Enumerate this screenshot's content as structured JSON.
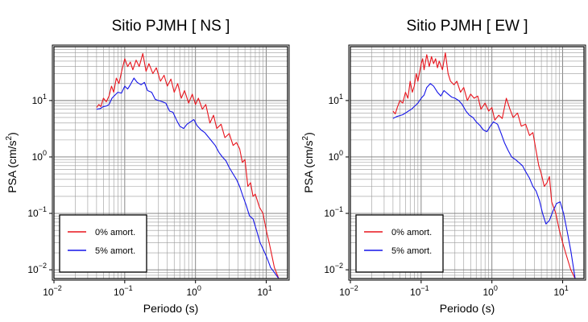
{
  "chart_data": [
    {
      "type": "line",
      "title": "Sitio PJMH [ NS ]",
      "xlabel": "Periodo (s)",
      "ylabel": "PSA (cm/s",
      "ylabel_sup": "2",
      "ylabel_close": ")",
      "x_scale": "log",
      "y_scale": "log",
      "xlim": [
        0.01,
        20
      ],
      "ylim": [
        0.007,
        90
      ],
      "grid": true,
      "legend_position": "bottom-left",
      "x_ticks": [
        {
          "value": 0.01,
          "base": "10",
          "exp": "−2"
        },
        {
          "value": 0.1,
          "base": "10",
          "exp": "−1"
        },
        {
          "value": 1,
          "base": "10",
          "exp": "0"
        },
        {
          "value": 10,
          "base": "10",
          "exp": "1"
        }
      ],
      "y_ticks": [
        {
          "value": 0.01,
          "base": "10",
          "exp": "−2"
        },
        {
          "value": 0.1,
          "base": "10",
          "exp": "−1"
        },
        {
          "value": 1,
          "base": "10",
          "exp": "0"
        },
        {
          "value": 10,
          "base": "10",
          "exp": "1"
        }
      ],
      "series": [
        {
          "name": "0% amort.",
          "color": "#e8141c",
          "x": [
            0.04,
            0.043,
            0.046,
            0.05,
            0.055,
            0.06,
            0.065,
            0.07,
            0.076,
            0.083,
            0.09,
            0.1,
            0.11,
            0.12,
            0.13,
            0.145,
            0.16,
            0.18,
            0.2,
            0.22,
            0.25,
            0.28,
            0.32,
            0.36,
            0.4,
            0.45,
            0.5,
            0.56,
            0.63,
            0.7,
            0.8,
            0.9,
            1.0,
            1.1,
            1.25,
            1.4,
            1.6,
            1.8,
            2.0,
            2.3,
            2.6,
            3.0,
            3.4,
            3.8,
            4.2,
            4.6,
            5.0,
            5.5,
            6.0,
            6.5,
            7.0,
            8.0,
            9.0,
            10.0,
            11.0,
            12.0,
            13.0,
            15.0
          ],
          "y": [
            7.5,
            8.5,
            7.8,
            11,
            9.5,
            12,
            18,
            14,
            25,
            20,
            32,
            55,
            40,
            48,
            35,
            52,
            40,
            68,
            33,
            45,
            30,
            38,
            22,
            28,
            18,
            24,
            14,
            20,
            11,
            15,
            9,
            13,
            8.5,
            11,
            7,
            8.5,
            4,
            5.5,
            3.2,
            3.8,
            2.2,
            2.6,
            1.6,
            1.8,
            1.4,
            0.8,
            0.9,
            0.3,
            0.35,
            0.2,
            0.22,
            0.13,
            0.1,
            0.05,
            0.03,
            0.018,
            0.011,
            0.007
          ]
        },
        {
          "name": "5% amort.",
          "color": "#1414e8",
          "x": [
            0.04,
            0.045,
            0.05,
            0.055,
            0.06,
            0.066,
            0.073,
            0.08,
            0.09,
            0.1,
            0.11,
            0.12,
            0.135,
            0.15,
            0.17,
            0.19,
            0.21,
            0.24,
            0.27,
            0.3,
            0.34,
            0.38,
            0.43,
            0.48,
            0.54,
            0.6,
            0.68,
            0.76,
            0.85,
            0.95,
            1.05,
            1.2,
            1.35,
            1.5,
            1.7,
            1.9,
            2.15,
            2.4,
            2.7,
            3.0,
            3.4,
            3.8,
            4.2,
            4.7,
            5.2,
            5.8,
            6.5,
            7.3,
            8.2,
            9.2,
            10.3,
            11.5,
            13.0,
            15.0
          ],
          "y": [
            7,
            7.2,
            7.8,
            8.0,
            8.5,
            11,
            12.5,
            14,
            13.5,
            18,
            16,
            19,
            25,
            21,
            19,
            21,
            15,
            14,
            10.5,
            10,
            9.5,
            9,
            6.5,
            6.2,
            4.5,
            3.5,
            3.2,
            3.8,
            4.2,
            4.6,
            3.6,
            3.0,
            2.7,
            2.3,
            1.9,
            1.6,
            1.2,
            1.0,
            0.85,
            0.65,
            0.5,
            0.4,
            0.3,
            0.2,
            0.14,
            0.09,
            0.08,
            0.05,
            0.03,
            0.022,
            0.016,
            0.011,
            0.009,
            0.007
          ]
        }
      ]
    },
    {
      "type": "line",
      "title": "Sitio PJMH [ EW ]",
      "xlabel": "Periodo (s)",
      "ylabel": "PSA (cm/s",
      "ylabel_sup": "2",
      "ylabel_close": ")",
      "x_scale": "log",
      "y_scale": "log",
      "xlim": [
        0.01,
        20
      ],
      "ylim": [
        0.007,
        90
      ],
      "grid": true,
      "legend_position": "bottom-left",
      "x_ticks": [
        {
          "value": 0.01,
          "base": "10",
          "exp": "−2"
        },
        {
          "value": 0.1,
          "base": "10",
          "exp": "−1"
        },
        {
          "value": 1,
          "base": "10",
          "exp": "0"
        },
        {
          "value": 10,
          "base": "10",
          "exp": "1"
        }
      ],
      "y_ticks": [
        {
          "value": 0.01,
          "base": "10",
          "exp": "−2"
        },
        {
          "value": 0.1,
          "base": "10",
          "exp": "−1"
        },
        {
          "value": 1,
          "base": "10",
          "exp": "0"
        },
        {
          "value": 10,
          "base": "10",
          "exp": "1"
        }
      ],
      "series": [
        {
          "name": "0% amort.",
          "color": "#e8141c",
          "x": [
            0.04,
            0.043,
            0.046,
            0.05,
            0.055,
            0.06,
            0.065,
            0.07,
            0.075,
            0.08,
            0.085,
            0.09,
            0.1,
            0.105,
            0.11,
            0.12,
            0.13,
            0.14,
            0.15,
            0.16,
            0.17,
            0.18,
            0.2,
            0.22,
            0.24,
            0.26,
            0.29,
            0.32,
            0.36,
            0.4,
            0.45,
            0.5,
            0.56,
            0.63,
            0.7,
            0.8,
            0.9,
            1.0,
            1.1,
            1.25,
            1.4,
            1.6,
            1.8,
            2.0,
            2.3,
            2.6,
            3.0,
            3.4,
            3.8,
            4.2,
            4.6,
            5.0,
            5.5,
            6.0,
            6.5,
            7.0,
            8.0,
            9.0,
            10.0,
            11.0,
            12.0,
            13.0,
            15.0
          ],
          "y": [
            6.5,
            5.8,
            7.5,
            10,
            9,
            14,
            11,
            22,
            14,
            18,
            30,
            22,
            45,
            55,
            35,
            65,
            40,
            60,
            45,
            55,
            38,
            50,
            35,
            70,
            30,
            22,
            19,
            22,
            14,
            17,
            10,
            13,
            11,
            12,
            7,
            9,
            6.5,
            7.5,
            4.5,
            5.5,
            4.8,
            11,
            7,
            5,
            6,
            3.5,
            3.8,
            2.4,
            2.7,
            1.3,
            0.7,
            0.5,
            0.3,
            0.35,
            0.45,
            0.16,
            0.1,
            0.05,
            0.03,
            0.02,
            0.014,
            0.01,
            0.007
          ]
        },
        {
          "name": "5% amort.",
          "color": "#1414e8",
          "x": [
            0.04,
            0.045,
            0.05,
            0.055,
            0.06,
            0.066,
            0.073,
            0.08,
            0.09,
            0.1,
            0.11,
            0.12,
            0.135,
            0.15,
            0.17,
            0.19,
            0.21,
            0.24,
            0.27,
            0.3,
            0.34,
            0.38,
            0.43,
            0.48,
            0.54,
            0.6,
            0.68,
            0.76,
            0.85,
            0.95,
            1.05,
            1.2,
            1.35,
            1.5,
            1.7,
            1.9,
            2.15,
            2.4,
            2.7,
            3.0,
            3.4,
            3.8,
            4.2,
            4.7,
            5.2,
            5.8,
            6.5,
            7.3,
            8.2,
            9.2,
            10.3,
            11.5,
            13.0,
            15.0
          ],
          "y": [
            4.8,
            5.2,
            5.4,
            5.6,
            6,
            6.5,
            7,
            7.8,
            9,
            11,
            12.5,
            17,
            20,
            18,
            14,
            12,
            15,
            13,
            11.5,
            11,
            10,
            8.5,
            6.5,
            5.5,
            5,
            4.2,
            3.6,
            3.0,
            2.8,
            3.5,
            4.2,
            3.8,
            2.6,
            1.8,
            1.3,
            1.0,
            0.9,
            0.8,
            0.7,
            0.55,
            0.42,
            0.3,
            0.25,
            0.17,
            0.1,
            0.065,
            0.075,
            0.11,
            0.15,
            0.16,
            0.1,
            0.05,
            0.022,
            0.007
          ]
        }
      ]
    }
  ]
}
